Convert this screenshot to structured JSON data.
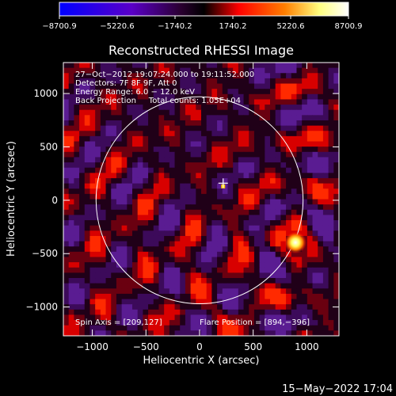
{
  "chart_data": {
    "type": "heatmap",
    "title": "Reconstructed RHESSI Image",
    "xlabel": "Heliocentric X (arcsec)",
    "ylabel": "Heliocentric Y (arcsec)",
    "xlim": [
      -1270,
      1300
    ],
    "ylim": [
      -1270,
      1290
    ],
    "xticks": [
      -1000,
      -500,
      0,
      500,
      1000
    ],
    "yticks": [
      -1000,
      -500,
      0,
      500,
      1000
    ],
    "xtick_labels": [
      "−1000",
      "−500",
      "0",
      "500",
      "1000"
    ],
    "ytick_labels": [
      "−1000",
      "−500",
      "0",
      "500",
      "1000"
    ],
    "colorbar": {
      "range": [
        -8700.9,
        8700.9
      ],
      "ticks": [
        -8700.9,
        -5220.6,
        -1740.2,
        1740.2,
        5220.6,
        8700.9
      ],
      "tick_labels": [
        "−8700.9",
        "−5220.6",
        "−1740.2",
        "1740.2",
        "5220.6",
        "8700.9"
      ],
      "colors": [
        "#0000ff",
        "#5a00c8",
        "#2a0030",
        "#000000",
        "#ff0000",
        "#ff7f00",
        "#ffff80",
        "#ffffff"
      ]
    },
    "info_lines": [
      "27−Oct−2012 19:07:24.000 to 19:11:52.000",
      "Detectors: 7F 8F 9F, Att 0",
      "Energy Range: 6.0 − 12.0 keV",
      "Back Projection     Total counts: 1.05E+04"
    ],
    "spin_axis": "Spin Axis = [209,127]",
    "flare_position_label": "Flare Position = [894,−396]",
    "flare_position": [
      894,
      -396
    ],
    "cross_marker": [
      220,
      160
    ],
    "secondary_source": [
      220,
      130
    ],
    "disk_circle": {
      "center": [
        0,
        0
      ],
      "radius": 965
    },
    "timestamp": "15−May−2022 17:04"
  }
}
